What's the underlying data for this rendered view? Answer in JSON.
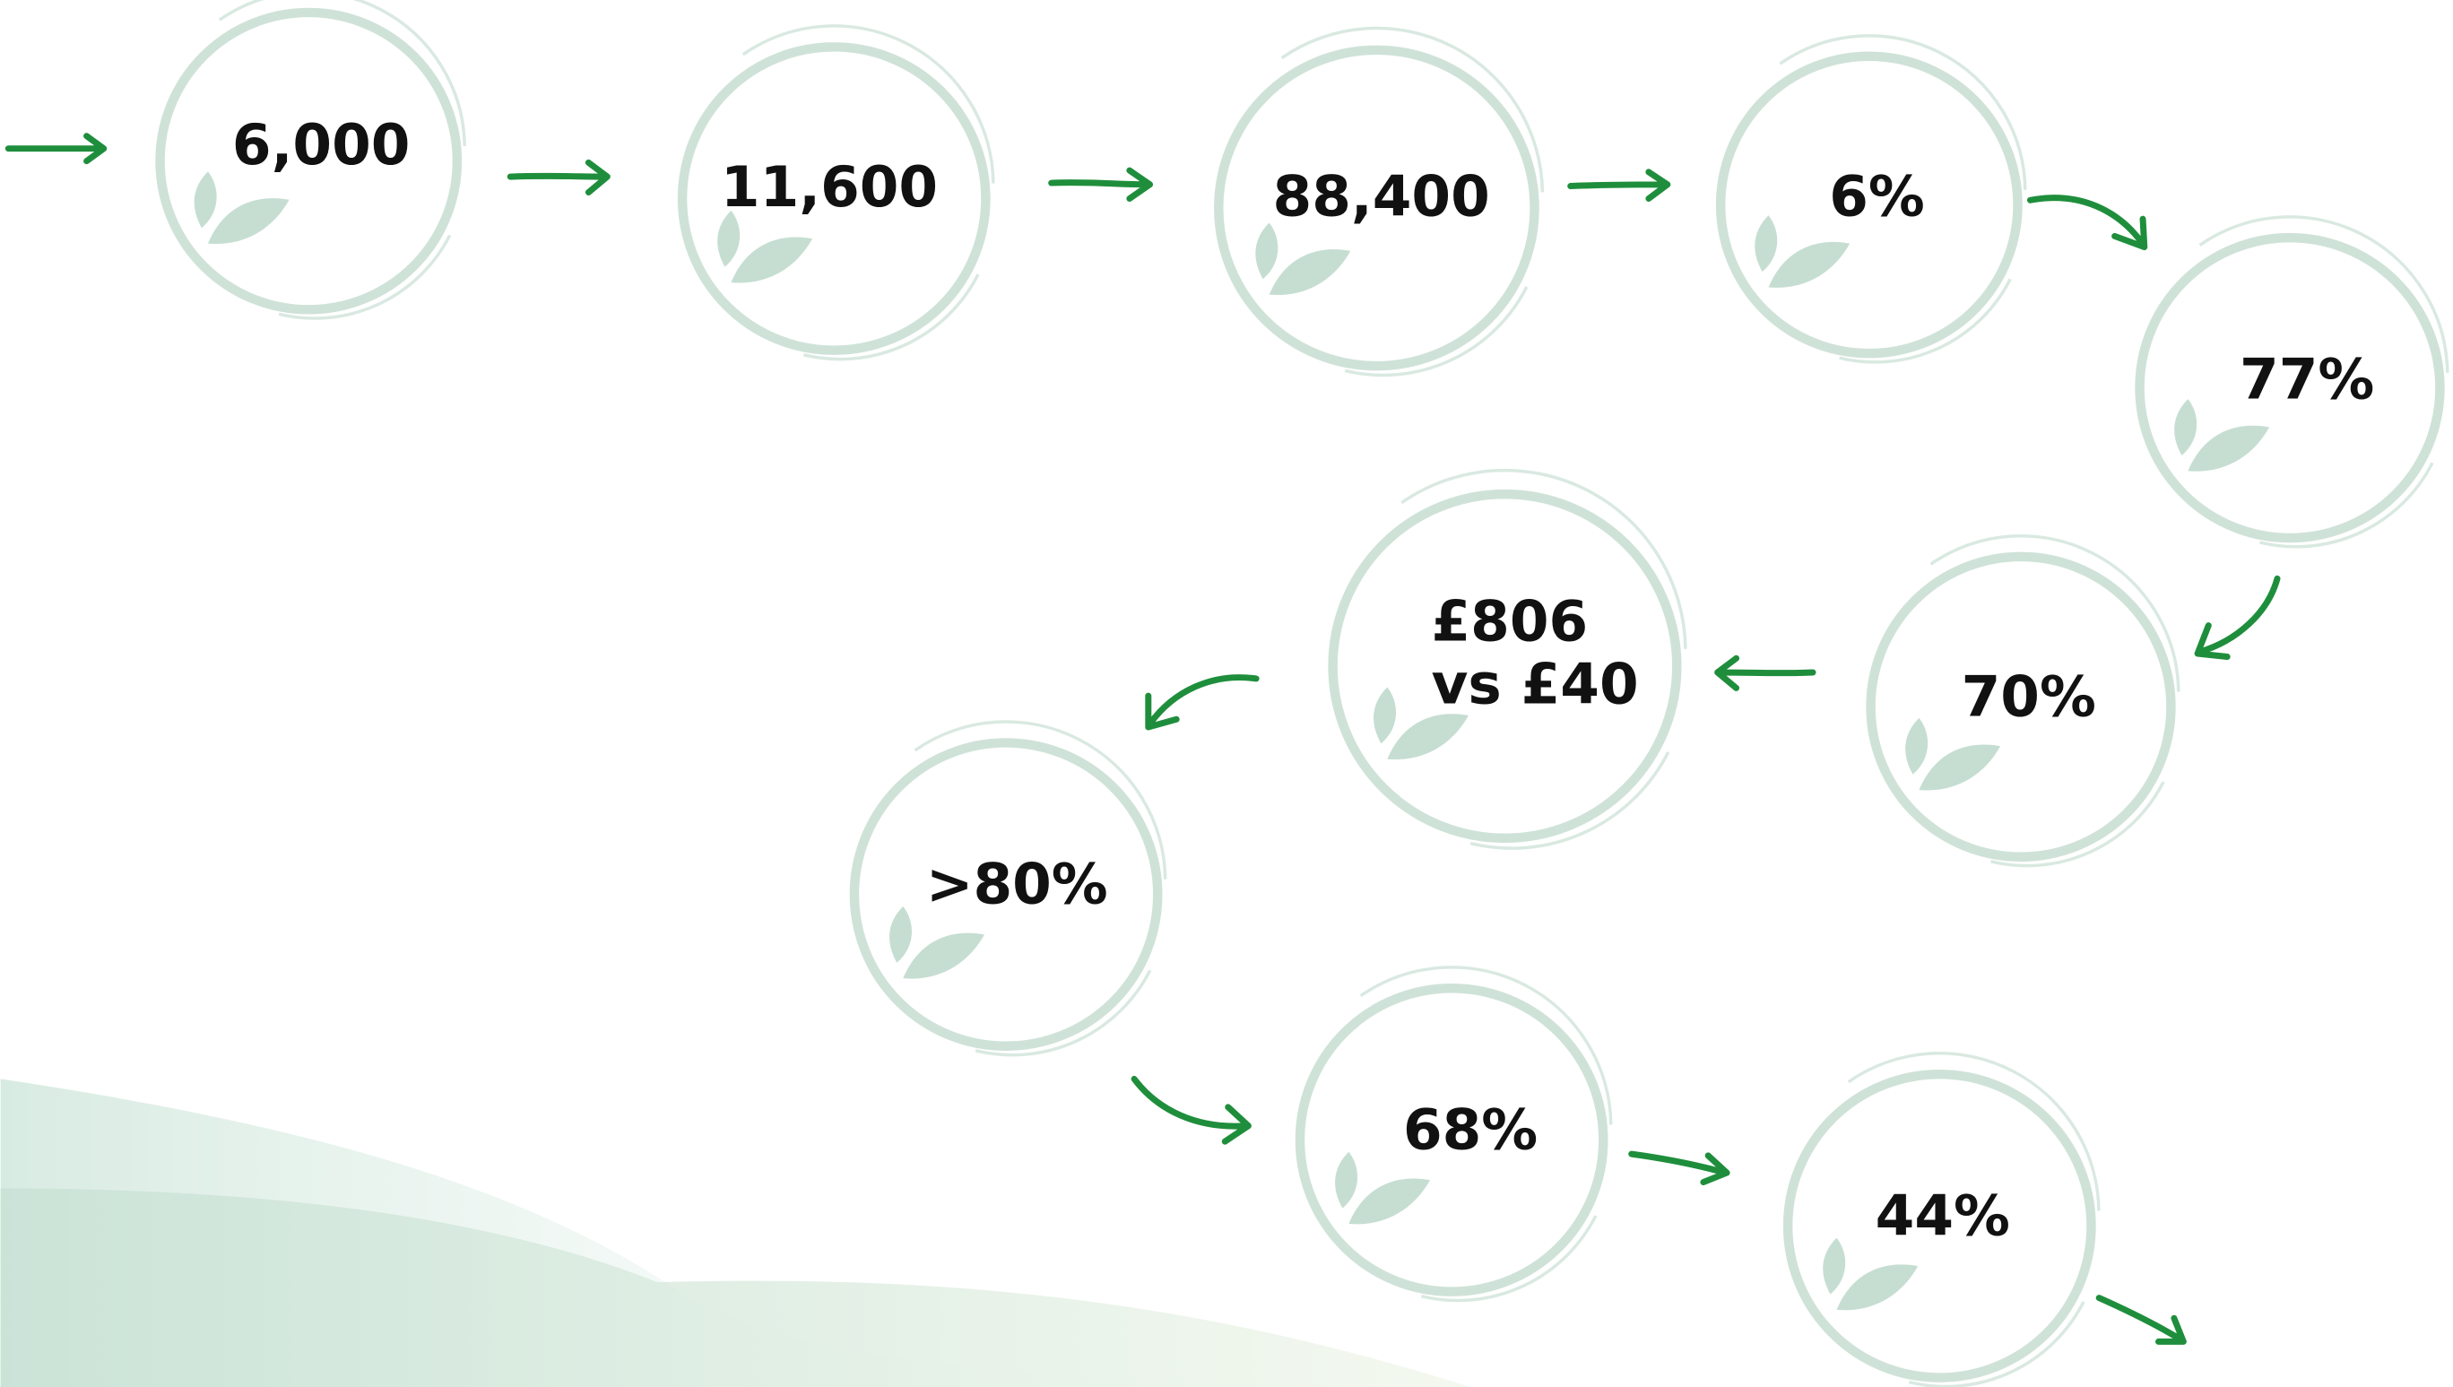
{
  "nodes": [
    {
      "lines": [
        "6,000"
      ]
    },
    {
      "lines": [
        "11,600"
      ]
    },
    {
      "lines": [
        "88,400"
      ]
    },
    {
      "lines": [
        "6%"
      ]
    },
    {
      "lines": [
        "77%"
      ]
    },
    {
      "lines": [
        "70%"
      ]
    },
    {
      "lines": [
        "£806",
        "vs £40"
      ]
    },
    {
      "lines": [
        ">80%"
      ]
    },
    {
      "lines": [
        "68%"
      ]
    },
    {
      "lines": [
        "44%"
      ]
    }
  ]
}
